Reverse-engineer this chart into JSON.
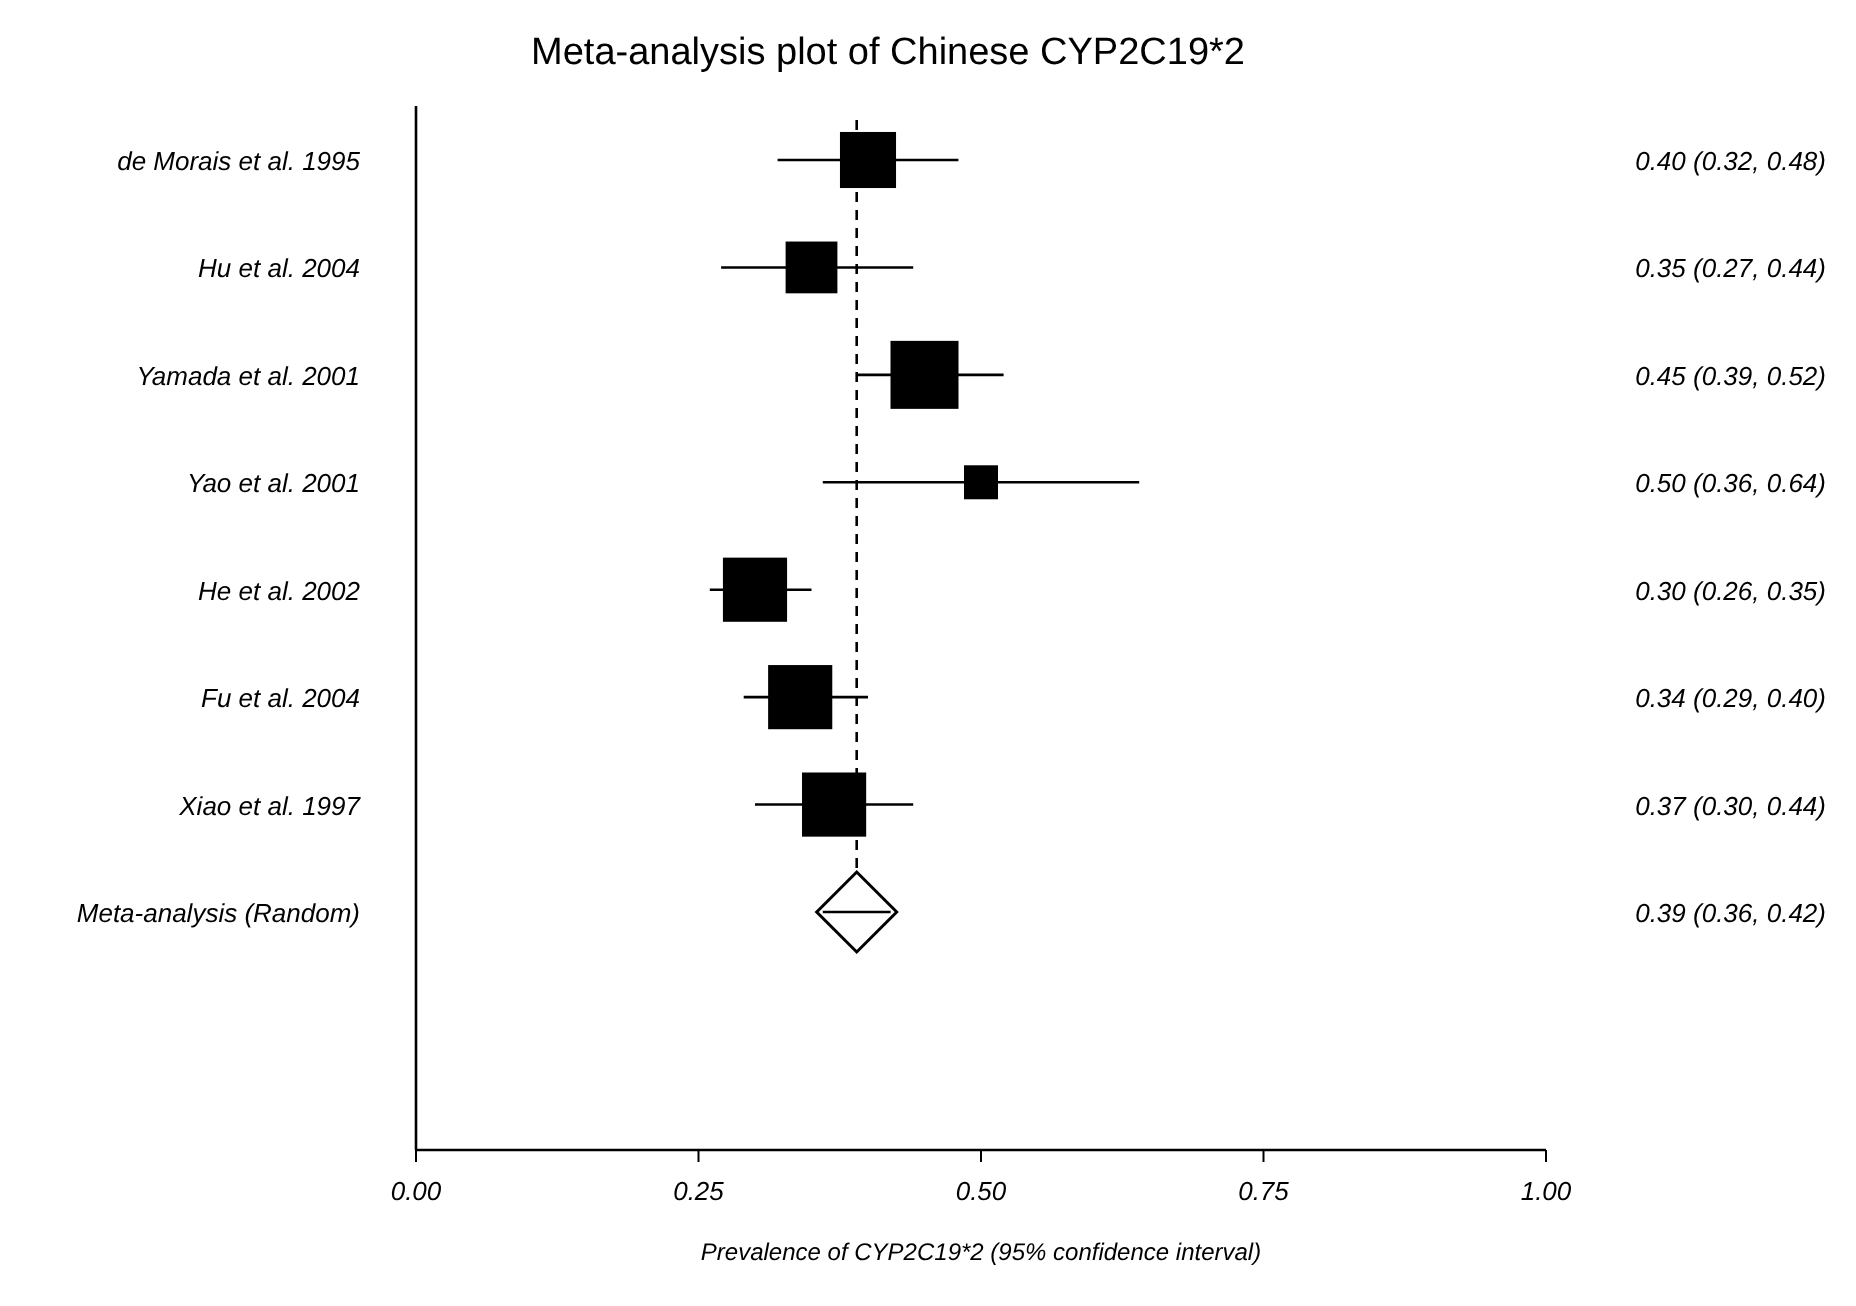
{
  "chart_data": {
    "type": "scatter",
    "orientation": "horizontal",
    "title": "Meta-analysis plot of Chinese CYP2C19*2",
    "xlabel": "Prevalence of CYP2C19*2 (95% confidence interval)",
    "categories": [
      "de Morais et al. 1995",
      "Hu et al. 2004",
      "Yamada et al. 2001",
      "Yao et al. 2001",
      "He et al. 2002",
      "Fu et al. 2004",
      "Xiao et al. 1997",
      "Meta-analysis (Random)"
    ],
    "series": [
      {
        "color": "#000000",
        "marker": "square",
        "values": [
          0.4,
          0.35,
          0.45,
          0.5,
          0.3,
          0.34,
          0.37,
          null
        ],
        "errors": [
          [
            0.32,
            0.48
          ],
          [
            0.27,
            0.44
          ],
          [
            0.39,
            0.52
          ],
          [
            0.36,
            0.64
          ],
          [
            0.26,
            0.35
          ],
          [
            0.29,
            0.4
          ],
          [
            0.3,
            0.44
          ],
          null
        ],
        "sizes": [
          0.68,
          0.58,
          1,
          0.25,
          0.89,
          0.89,
          0.89,
          null
        ]
      },
      {
        "color": "#000000",
        "marker": "diamond",
        "values": [
          null,
          null,
          null,
          null,
          null,
          null,
          null,
          0.39
        ],
        "errors": [
          null,
          null,
          null,
          null,
          null,
          null,
          null,
          [
            0.36,
            0.42
          ]
        ]
      }
    ],
    "value_labels": [
      "0.40 (0.32, 0.48)",
      "0.35 (0.27, 0.44)",
      "0.45 (0.39, 0.52)",
      "0.50 (0.36, 0.64)",
      "0.30 (0.26, 0.35)",
      "0.34 (0.29, 0.40)",
      "0.37 (0.30, 0.44)",
      "0.39 (0.36, 0.42)"
    ],
    "ref_lines": [
      {
        "axis": "x",
        "value": 0.39,
        "line_style": "dashed"
      }
    ],
    "xlim": [
      0,
      1
    ],
    "xticks": [
      {
        "value": 0,
        "label": "0.00"
      },
      {
        "value": 0.25,
        "label": "0.25"
      },
      {
        "value": 0.5,
        "label": "0.50"
      },
      {
        "value": 0.75,
        "label": "0.75"
      },
      {
        "value": 1,
        "label": "1.00"
      }
    ],
    "grid": false
  }
}
